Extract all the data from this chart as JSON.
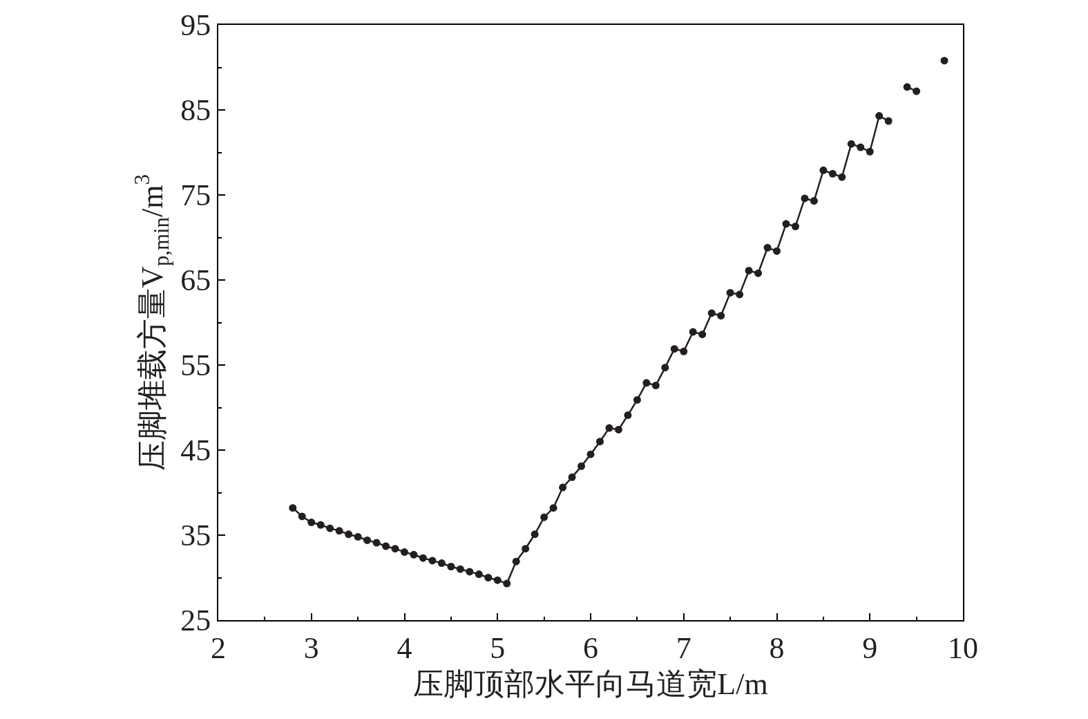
{
  "chart_data": {
    "type": "line",
    "xlabel": "压脚顶部水平向马道宽L/m",
    "ylabel": "压脚堆载方量V$_{p,min}$/m$^{3}$",
    "x": [
      2.8,
      2.9,
      3.0,
      3.1,
      3.2,
      3.3,
      3.4,
      3.5,
      3.6,
      3.7,
      3.8,
      3.9,
      4.0,
      4.1,
      4.2,
      4.3,
      4.4,
      4.5,
      4.6,
      4.7,
      4.8,
      4.9,
      5.0,
      5.1,
      5.2,
      5.3,
      5.4,
      5.5,
      5.6,
      5.7,
      5.8,
      5.9,
      6.0,
      6.1,
      6.2,
      6.3,
      6.4,
      6.5,
      6.6,
      6.7,
      6.8,
      6.9,
      7.0,
      7.1,
      7.2,
      7.3,
      7.4,
      7.5,
      7.6,
      7.7,
      7.8,
      7.9,
      8.0,
      8.1,
      8.2,
      8.3,
      8.4,
      8.5,
      8.6,
      8.7,
      8.8,
      8.9,
      9.0,
      9.1,
      9.2,
      9.3,
      9.4,
      9.5,
      9.6,
      9.7,
      9.8
    ],
    "series": [
      {
        "color": "#231f20",
        "values": [
          38.2,
          37.2,
          36.5,
          36.2,
          35.8,
          35.5,
          35.1,
          34.8,
          34.4,
          34.1,
          33.7,
          33.4,
          33.0,
          32.7,
          32.3,
          32.0,
          31.7,
          31.3,
          31.0,
          30.7,
          30.4,
          30.0,
          29.7,
          29.3,
          31.9,
          33.4,
          35.1,
          37.1,
          38.2,
          40.6,
          41.8,
          43.1,
          44.5,
          46.0,
          47.6,
          47.4,
          49.1,
          50.9,
          52.9,
          52.6,
          54.7,
          56.9,
          56.6,
          58.9,
          58.6,
          61.1,
          60.8,
          63.5,
          63.3,
          66.1,
          65.8,
          68.8,
          68.4,
          71.6,
          71.3,
          74.6,
          74.3,
          77.9,
          77.5,
          77.1,
          81.0,
          80.6,
          80.1,
          84.3,
          83.7,
          null,
          87.7,
          87.2,
          null,
          null,
          90.8
        ]
      }
    ],
    "xlim": [
      2,
      10
    ],
    "xticks": [
      2,
      3,
      4,
      5,
      6,
      7,
      8,
      9,
      10
    ],
    "ylim": [
      25,
      95
    ],
    "yticks": [
      25,
      35,
      45,
      55,
      65,
      75,
      85,
      95
    ],
    "marker": "circle",
    "line_style": "solid",
    "grid": false
  }
}
